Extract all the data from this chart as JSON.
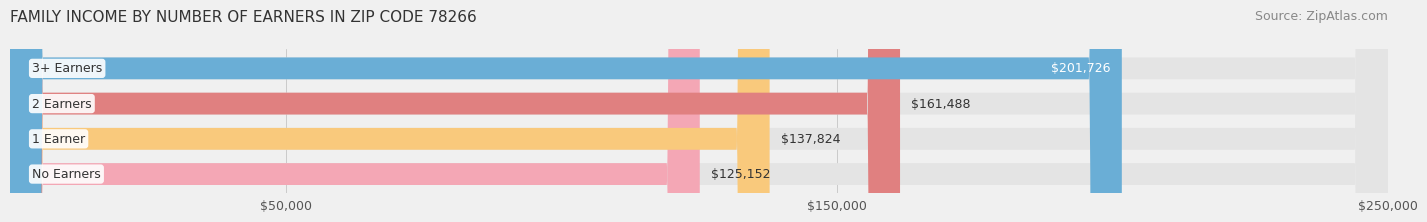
{
  "title": "FAMILY INCOME BY NUMBER OF EARNERS IN ZIP CODE 78266",
  "source": "Source: ZipAtlas.com",
  "categories": [
    "No Earners",
    "1 Earner",
    "2 Earners",
    "3+ Earners"
  ],
  "values": [
    125152,
    137824,
    161488,
    201726
  ],
  "bar_colors": [
    "#f4a7b5",
    "#f9c97c",
    "#e08080",
    "#6aaed6"
  ],
  "label_colors": [
    "#333333",
    "#333333",
    "#333333",
    "#ffffff"
  ],
  "value_labels": [
    "$125,152",
    "$137,824",
    "$161,488",
    "$201,726"
  ],
  "xlim": [
    0,
    250000
  ],
  "xticks": [
    50000,
    150000,
    250000
  ],
  "xtick_labels": [
    "$50,000",
    "$150,000",
    "$250,000"
  ],
  "background_color": "#f0f0f0",
  "bar_background": "#e4e4e4",
  "title_fontsize": 11,
  "source_fontsize": 9,
  "label_fontsize": 9,
  "value_fontsize": 9
}
